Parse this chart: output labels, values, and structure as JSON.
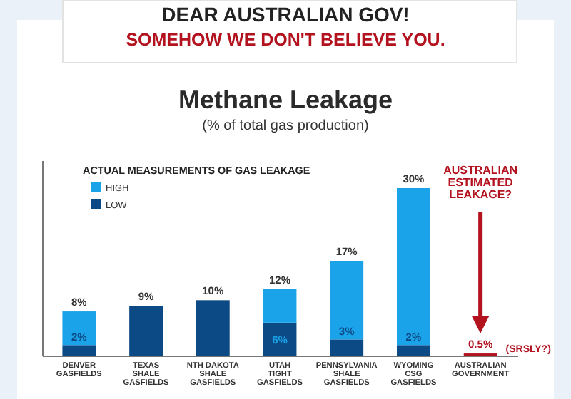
{
  "chart_data": {
    "type": "bar",
    "stacked": true,
    "totals": [
      "8%",
      "9%",
      "10%",
      "12%",
      "17%",
      "30%",
      "0.5%"
    ],
    "title": "Methane Leakage",
    "subtitle": "(% of total gas production)",
    "legend_title": "ACTUAL MEASUREMENTS OF GAS LEAKAGE",
    "legend": "top left",
    "categories": [
      "DENVER\nGASFIELDS",
      "TEXAS\nSHALE\nGASFIELDS",
      "NTH DAKOTA\nSHALE\nGASFIELDS",
      "UTAH\nTIGHT\nGASFIELDS",
      "PENNSYLVANIA\nSHALE\nGASFIELDS",
      "WYOMING\nCSG\nGASFIELDS",
      "AUSTRALIAN\nGOVERNMENT"
    ],
    "series": [
      {
        "name": "LOW",
        "color": "#0b4a85",
        "colors": [
          "#0b4a85",
          "#0b4a85",
          "#0b4a85",
          "#0b4a85",
          "#0b4a85",
          "#0b4a85",
          "#b3121f"
        ],
        "values": [
          2,
          9,
          10,
          6,
          3,
          2,
          0.5
        ],
        "value_labels": [
          "2%",
          null,
          null,
          "6%",
          "3%",
          "2%",
          null
        ]
      },
      {
        "name": "HIGH",
        "color": "#1aa3e8",
        "values": [
          6,
          null,
          null,
          6,
          14,
          28,
          null
        ]
      }
    ],
    "annotations": [
      "DEAR AUSTRALIAN GOV!",
      "SOMEHOW WE DON'T BELIEVE YOU.",
      "AUSTRALIAN\nESTIMATED\nLEAKAGE?",
      "(SRSLY?)"
    ]
  }
}
